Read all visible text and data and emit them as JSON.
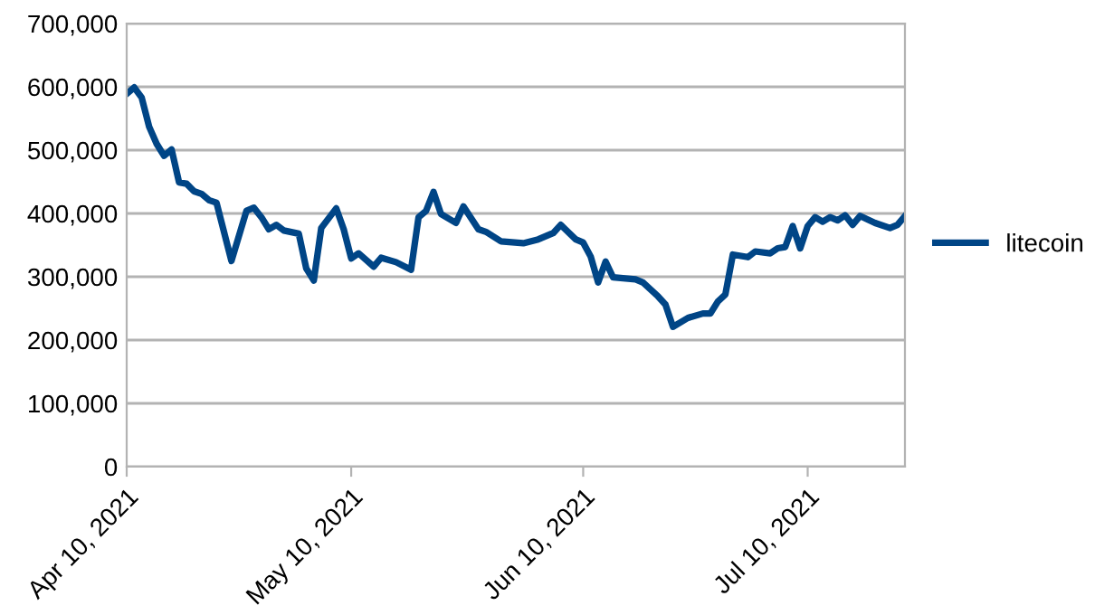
{
  "chart_data": {
    "type": "line",
    "x": [
      "2021-04-10",
      "2021-04-11",
      "2021-04-12",
      "2021-04-13",
      "2021-04-14",
      "2021-04-15",
      "2021-04-16",
      "2021-04-17",
      "2021-04-18",
      "2021-04-19",
      "2021-04-20",
      "2021-04-21",
      "2021-04-22",
      "2021-04-24",
      "2021-04-26",
      "2021-04-27",
      "2021-04-28",
      "2021-04-29",
      "2021-04-30",
      "2021-05-01",
      "2021-05-03",
      "2021-05-04",
      "2021-05-05",
      "2021-05-06",
      "2021-05-08",
      "2021-05-09",
      "2021-05-10",
      "2021-05-11",
      "2021-05-13",
      "2021-05-14",
      "2021-05-16",
      "2021-05-18",
      "2021-05-19",
      "2021-05-20",
      "2021-05-21",
      "2021-05-22",
      "2021-05-24",
      "2021-05-25",
      "2021-05-27",
      "2021-05-28",
      "2021-05-30",
      "2021-06-02",
      "2021-06-04",
      "2021-06-06",
      "2021-06-07",
      "2021-06-09",
      "2021-06-10",
      "2021-06-11",
      "2021-06-12",
      "2021-06-13",
      "2021-06-14",
      "2021-06-17",
      "2021-06-18",
      "2021-06-20",
      "2021-06-21",
      "2021-06-22",
      "2021-06-24",
      "2021-06-26",
      "2021-06-27",
      "2021-06-28",
      "2021-06-29",
      "2021-06-30",
      "2021-07-02",
      "2021-07-03",
      "2021-07-05",
      "2021-07-06",
      "2021-07-07",
      "2021-07-08",
      "2021-07-09",
      "2021-07-10",
      "2021-07-11",
      "2021-07-12",
      "2021-07-13",
      "2021-07-14",
      "2021-07-15",
      "2021-07-16",
      "2021-07-17",
      "2021-07-19",
      "2021-07-21",
      "2021-07-22",
      "2021-07-23"
    ],
    "series": [
      {
        "name": "litecoin",
        "color": "#004586",
        "values": [
          589000,
          599000,
          583000,
          537000,
          510000,
          491000,
          501000,
          449000,
          447000,
          435000,
          431000,
          421000,
          417000,
          325000,
          404000,
          409000,
          394000,
          375000,
          382000,
          373000,
          368000,
          313000,
          294000,
          377000,
          408000,
          375000,
          329000,
          337000,
          316000,
          330000,
          323000,
          311000,
          394000,
          404000,
          434000,
          399000,
          385000,
          411000,
          375000,
          371000,
          356000,
          353000,
          359000,
          369000,
          382000,
          359000,
          354000,
          332000,
          291000,
          324000,
          299000,
          296000,
          291000,
          269000,
          256000,
          221000,
          235000,
          242000,
          242000,
          261000,
          272000,
          335000,
          331000,
          340000,
          337000,
          345000,
          347000,
          380000,
          345000,
          380000,
          394000,
          387000,
          394000,
          389000,
          397000,
          382000,
          396000,
          385000,
          377000,
          382000,
          396000
        ]
      }
    ],
    "xlim": [
      "2021-04-10",
      "2021-07-23"
    ],
    "xticks": [
      {
        "value": "2021-04-10",
        "label": "Apr 10, 2021"
      },
      {
        "value": "2021-05-10",
        "label": "May 10, 2021"
      },
      {
        "value": "2021-06-10",
        "label": "Jun 10, 2021"
      },
      {
        "value": "2021-07-10",
        "label": "Jul 10, 2021"
      }
    ],
    "ylim": [
      0,
      700000
    ],
    "yticks": [
      0,
      {
        "value": 100000,
        "label": "100,000"
      },
      {
        "value": 200000,
        "label": "200,000"
      },
      {
        "value": 300000,
        "label": "300,000"
      },
      {
        "value": 400000,
        "label": "400,000"
      },
      {
        "value": 500000,
        "label": "500,000"
      },
      {
        "value": 600000,
        "label": "600,000"
      },
      {
        "value": 700000,
        "label": "700,000"
      }
    ],
    "grid": "y",
    "legend": "right",
    "marker": "none",
    "line_style": "solid"
  }
}
